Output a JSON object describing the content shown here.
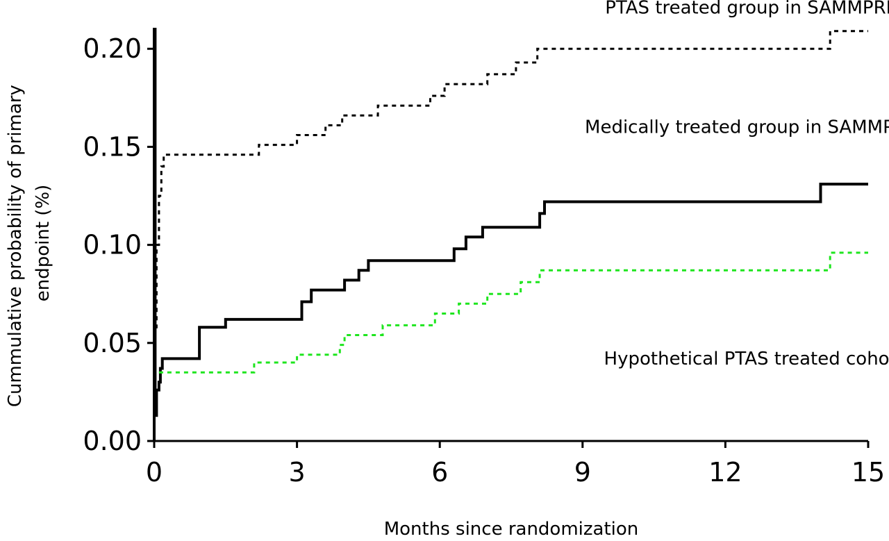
{
  "chart_data": {
    "type": "line",
    "xlabel": "Months since randomization",
    "ylabel": [
      "Cummulative probability of primary",
      "endpoint (%)"
    ],
    "xlim": [
      0,
      15
    ],
    "ylim": [
      0,
      0.21
    ],
    "xticks": [
      0,
      3,
      6,
      9,
      12,
      15
    ],
    "xtick_labels": [
      "0",
      "3",
      "6",
      "9",
      "12",
      "15"
    ],
    "yticks": [
      0,
      0.05,
      0.1,
      0.15,
      0.2
    ],
    "ytick_labels": [
      "0.00",
      "0.05",
      "0.10",
      "0.15",
      "0.20"
    ],
    "grid": false,
    "series": [
      {
        "name": "PTAS treated group in SAMMPRIS",
        "color": "#000000",
        "style": "solid",
        "step": true,
        "points": [
          [
            0,
            0
          ],
          [
            0,
            0.21
          ],
          [
            0.02,
            0.21
          ],
          [
            0.02,
            0.013
          ],
          [
            0.05,
            0.013
          ],
          [
            0.05,
            0.026
          ],
          [
            0.1,
            0.026
          ],
          [
            0.1,
            0.03
          ],
          [
            0.13,
            0.03
          ],
          [
            0.13,
            0.037
          ],
          [
            0.17,
            0.037
          ],
          [
            0.17,
            0.042
          ],
          [
            0.95,
            0.042
          ],
          [
            0.95,
            0.058
          ],
          [
            1.5,
            0.058
          ],
          [
            1.5,
            0.062
          ],
          [
            3.1,
            0.062
          ],
          [
            3.1,
            0.071
          ],
          [
            3.3,
            0.071
          ],
          [
            3.3,
            0.077
          ],
          [
            4.0,
            0.077
          ],
          [
            4.0,
            0.082
          ],
          [
            4.3,
            0.082
          ],
          [
            4.3,
            0.087
          ],
          [
            4.5,
            0.087
          ],
          [
            4.5,
            0.092
          ],
          [
            6.3,
            0.092
          ],
          [
            6.3,
            0.098
          ],
          [
            6.55,
            0.098
          ],
          [
            6.55,
            0.104
          ],
          [
            6.9,
            0.104
          ],
          [
            6.9,
            0.109
          ],
          [
            8.1,
            0.109
          ],
          [
            8.1,
            0.116
          ],
          [
            8.2,
            0.116
          ],
          [
            8.2,
            0.122
          ],
          [
            14.0,
            0.122
          ],
          [
            14.0,
            0.131
          ],
          [
            15.0,
            0.131
          ]
        ]
      },
      {
        "name": "Medically treated group in SAMMPRIS",
        "color": "#000000",
        "style": "dotted",
        "step": true,
        "points": [
          [
            0.02,
            0.058
          ],
          [
            0.05,
            0.058
          ],
          [
            0.05,
            0.1
          ],
          [
            0.1,
            0.1
          ],
          [
            0.1,
            0.125
          ],
          [
            0.15,
            0.125
          ],
          [
            0.15,
            0.14
          ],
          [
            0.2,
            0.14
          ],
          [
            0.2,
            0.146
          ],
          [
            2.2,
            0.146
          ],
          [
            2.2,
            0.151
          ],
          [
            3.0,
            0.151
          ],
          [
            3.0,
            0.156
          ],
          [
            3.6,
            0.156
          ],
          [
            3.6,
            0.161
          ],
          [
            3.95,
            0.161
          ],
          [
            3.95,
            0.166
          ],
          [
            4.7,
            0.166
          ],
          [
            4.7,
            0.171
          ],
          [
            5.8,
            0.171
          ],
          [
            5.8,
            0.176
          ],
          [
            6.1,
            0.176
          ],
          [
            6.1,
            0.182
          ],
          [
            7.0,
            0.182
          ],
          [
            7.0,
            0.187
          ],
          [
            7.6,
            0.187
          ],
          [
            7.6,
            0.193
          ],
          [
            8.05,
            0.193
          ],
          [
            8.05,
            0.2
          ],
          [
            14.2,
            0.2
          ],
          [
            14.2,
            0.209
          ],
          [
            15.0,
            0.209
          ]
        ]
      },
      {
        "name": "Hypothetical PTAS treated cohort",
        "color": "#1ee51e",
        "style": "dotted",
        "step": true,
        "points": [
          [
            0.1,
            0.035
          ],
          [
            2.1,
            0.035
          ],
          [
            2.1,
            0.04
          ],
          [
            3.0,
            0.04
          ],
          [
            3.0,
            0.044
          ],
          [
            3.9,
            0.044
          ],
          [
            3.9,
            0.049
          ],
          [
            4.0,
            0.049
          ],
          [
            4.0,
            0.054
          ],
          [
            4.8,
            0.054
          ],
          [
            4.8,
            0.059
          ],
          [
            5.9,
            0.059
          ],
          [
            5.9,
            0.065
          ],
          [
            6.4,
            0.065
          ],
          [
            6.4,
            0.07
          ],
          [
            7.0,
            0.07
          ],
          [
            7.0,
            0.075
          ],
          [
            7.7,
            0.075
          ],
          [
            7.7,
            0.081
          ],
          [
            8.1,
            0.081
          ],
          [
            8.1,
            0.087
          ],
          [
            14.2,
            0.087
          ],
          [
            14.2,
            0.096
          ],
          [
            15.0,
            0.096
          ]
        ]
      }
    ],
    "annotations": [
      {
        "text": "PTAS treated group in SAMMPRIS",
        "x": 12.6,
        "y": 0.218
      },
      {
        "text": "Medically treated group in SAMMPRIS",
        "x": 12.6,
        "y": 0.157
      },
      {
        "text": "Hypothetical PTAS treated cohort",
        "x": 12.6,
        "y": 0.039
      }
    ]
  }
}
